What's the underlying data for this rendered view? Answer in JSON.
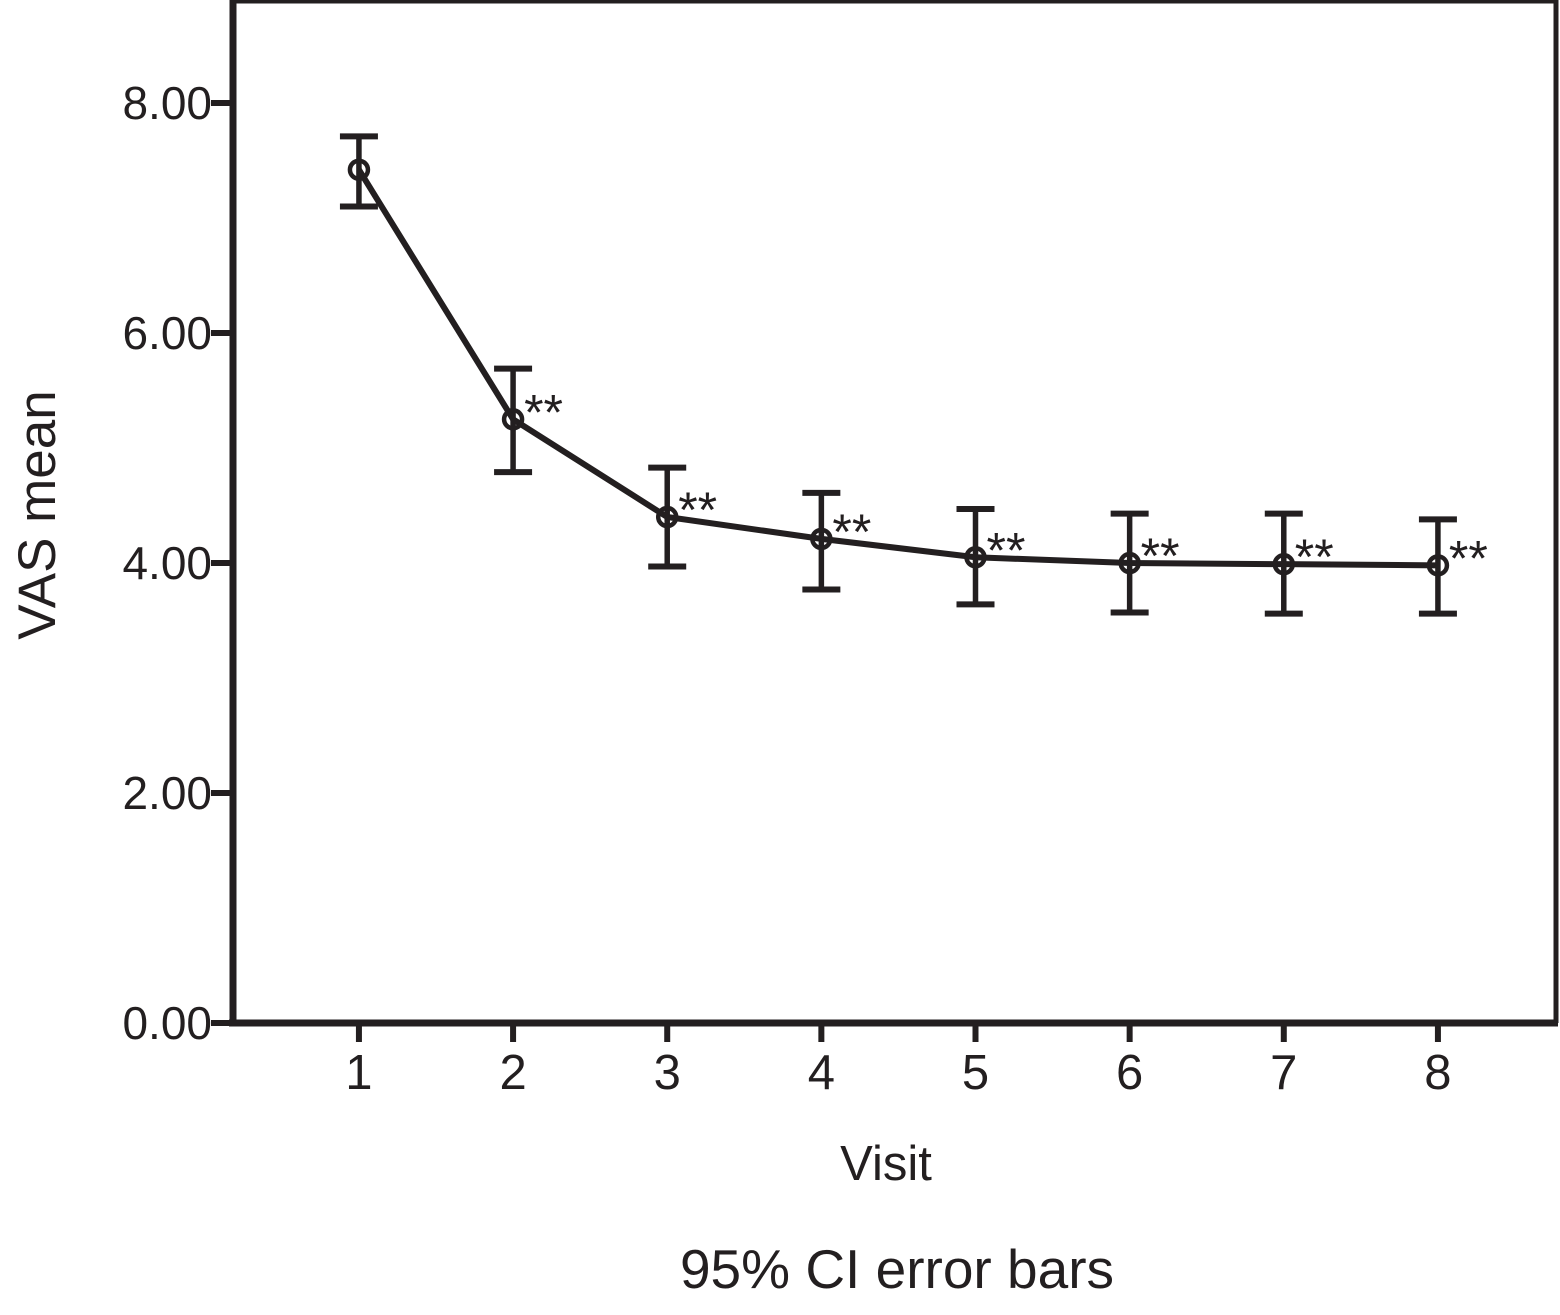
{
  "figure": {
    "background": "#ffffff",
    "ink_color": "#231f20"
  },
  "chart_data": {
    "type": "line",
    "title": "",
    "xlabel": "Visit",
    "ylabel": "VAS mean",
    "caption": "95% CI error bars",
    "grid": false,
    "legend_position": "none",
    "marker_style": "open-circle",
    "error_bar_style": "95% CI capped",
    "x": [
      1,
      2,
      3,
      4,
      5,
      6,
      7,
      8
    ],
    "xtick_labels": [
      "1",
      "2",
      "3",
      "4",
      "5",
      "6",
      "7",
      "8"
    ],
    "ytick_values": [
      0,
      2,
      4,
      6,
      8
    ],
    "ytick_labels": [
      "0.00",
      "2.00",
      "4.00",
      "6.00",
      "8.00"
    ],
    "xlim": [
      0.183,
      8.766
    ],
    "ylim": [
      0,
      8.87
    ],
    "series": [
      {
        "name": "VAS mean",
        "values": [
          7.42,
          5.25,
          4.4,
          4.21,
          4.05,
          4.0,
          3.99,
          3.98
        ],
        "ci_low": [
          7.1,
          4.79,
          3.97,
          3.77,
          3.64,
          3.57,
          3.56,
          3.56
        ],
        "ci_high": [
          7.71,
          5.69,
          4.83,
          4.61,
          4.47,
          4.43,
          4.43,
          4.38
        ],
        "annotations": [
          "",
          "**",
          "**",
          "**",
          "**",
          "**",
          "**",
          "**"
        ]
      }
    ]
  }
}
